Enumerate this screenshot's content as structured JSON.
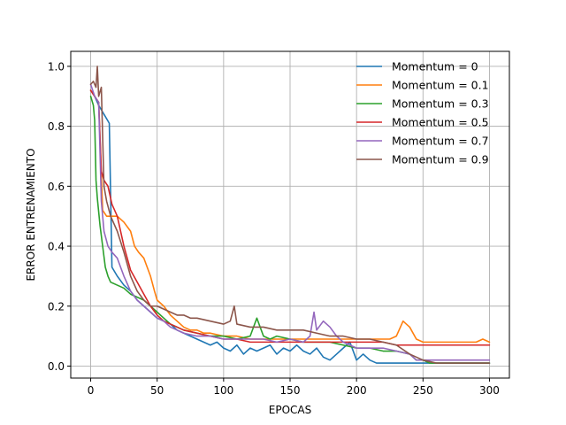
{
  "chart_data": {
    "type": "line",
    "title": "",
    "xlabel": "EPOCAS",
    "ylabel": "ERROR ENTRENAMIENTO",
    "xlim": [
      -15,
      315
    ],
    "ylim": [
      -0.04,
      1.05
    ],
    "xticks": [
      0,
      50,
      100,
      150,
      200,
      250,
      300
    ],
    "yticks": [
      0.0,
      0.2,
      0.4,
      0.6,
      0.8,
      1.0
    ],
    "xtick_labels": [
      "0",
      "50",
      "100",
      "150",
      "200",
      "250",
      "300"
    ],
    "ytick_labels": [
      "0.0",
      "0.2",
      "0.4",
      "0.6",
      "0.8",
      "1.0"
    ],
    "grid": true,
    "legend_position": "top-right",
    "series": [
      {
        "name": "Momentum = 0",
        "color": "#1f77b4",
        "x": [
          0,
          3,
          6,
          10,
          14,
          16,
          20,
          25,
          30,
          35,
          40,
          45,
          50,
          55,
          60,
          65,
          70,
          75,
          80,
          85,
          90,
          95,
          100,
          105,
          110,
          115,
          120,
          125,
          130,
          135,
          140,
          145,
          150,
          155,
          160,
          165,
          170,
          175,
          180,
          185,
          190,
          195,
          200,
          205,
          210,
          215,
          220,
          230,
          240,
          250,
          260,
          270,
          280,
          290,
          300
        ],
        "y": [
          0.92,
          0.9,
          0.87,
          0.84,
          0.81,
          0.33,
          0.3,
          0.27,
          0.25,
          0.22,
          0.2,
          0.18,
          0.16,
          0.15,
          0.14,
          0.12,
          0.11,
          0.1,
          0.09,
          0.08,
          0.07,
          0.08,
          0.06,
          0.05,
          0.07,
          0.04,
          0.06,
          0.05,
          0.06,
          0.07,
          0.04,
          0.06,
          0.05,
          0.07,
          0.05,
          0.04,
          0.06,
          0.03,
          0.02,
          0.04,
          0.06,
          0.08,
          0.02,
          0.04,
          0.02,
          0.01,
          0.01,
          0.01,
          0.01,
          0.01,
          0.01,
          0.01,
          0.01,
          0.01,
          0.01
        ]
      },
      {
        "name": "Momentum = 0.1",
        "color": "#ff7f0e",
        "x": [
          0,
          3,
          6,
          9,
          12,
          15,
          20,
          25,
          30,
          33,
          36,
          40,
          45,
          48,
          50,
          55,
          60,
          65,
          70,
          75,
          80,
          85,
          90,
          100,
          110,
          120,
          130,
          140,
          150,
          160,
          170,
          180,
          190,
          200,
          210,
          220,
          225,
          230,
          235,
          240,
          245,
          250,
          260,
          270,
          280,
          290,
          295,
          300
        ],
        "y": [
          0.92,
          0.9,
          0.88,
          0.52,
          0.5,
          0.5,
          0.5,
          0.48,
          0.45,
          0.4,
          0.38,
          0.36,
          0.3,
          0.25,
          0.22,
          0.2,
          0.17,
          0.15,
          0.13,
          0.12,
          0.12,
          0.11,
          0.11,
          0.1,
          0.1,
          0.09,
          0.09,
          0.09,
          0.09,
          0.09,
          0.09,
          0.09,
          0.09,
          0.09,
          0.09,
          0.09,
          0.09,
          0.1,
          0.15,
          0.13,
          0.09,
          0.08,
          0.08,
          0.08,
          0.08,
          0.08,
          0.09,
          0.08
        ]
      },
      {
        "name": "Momentum = 0.3",
        "color": "#2ca02c",
        "x": [
          0,
          2,
          3,
          4,
          5,
          7,
          9,
          11,
          13,
          15,
          20,
          25,
          30,
          35,
          40,
          45,
          50,
          55,
          60,
          65,
          70,
          80,
          90,
          100,
          110,
          120,
          125,
          130,
          135,
          140,
          150,
          160,
          170,
          180,
          190,
          200,
          210,
          220,
          230,
          240,
          245,
          250,
          255,
          260,
          270,
          280,
          290,
          300
        ],
        "y": [
          0.9,
          0.87,
          0.82,
          0.62,
          0.56,
          0.47,
          0.4,
          0.33,
          0.3,
          0.28,
          0.27,
          0.26,
          0.24,
          0.23,
          0.22,
          0.2,
          0.18,
          0.16,
          0.14,
          0.13,
          0.12,
          0.11,
          0.1,
          0.1,
          0.09,
          0.1,
          0.16,
          0.1,
          0.09,
          0.1,
          0.09,
          0.08,
          0.08,
          0.08,
          0.07,
          0.06,
          0.06,
          0.05,
          0.05,
          0.04,
          0.02,
          0.02,
          0.01,
          0.01,
          0.01,
          0.01,
          0.01,
          0.01
        ]
      },
      {
        "name": "Momentum = 0.5",
        "color": "#d62728",
        "x": [
          0,
          3,
          6,
          8,
          10,
          13,
          16,
          20,
          25,
          30,
          35,
          40,
          45,
          50,
          55,
          60,
          65,
          70,
          80,
          90,
          100,
          110,
          120,
          130,
          140,
          150,
          160,
          170,
          180,
          190,
          200,
          210,
          220,
          230,
          240,
          250,
          260,
          270,
          280,
          290,
          300
        ],
        "y": [
          0.92,
          0.9,
          0.88,
          0.65,
          0.62,
          0.6,
          0.54,
          0.5,
          0.4,
          0.32,
          0.28,
          0.24,
          0.2,
          0.17,
          0.15,
          0.14,
          0.13,
          0.12,
          0.11,
          0.1,
          0.09,
          0.09,
          0.08,
          0.08,
          0.08,
          0.08,
          0.08,
          0.08,
          0.08,
          0.08,
          0.08,
          0.08,
          0.08,
          0.07,
          0.07,
          0.07,
          0.07,
          0.07,
          0.07,
          0.07,
          0.07
        ]
      },
      {
        "name": "Momentum = 0.7",
        "color": "#9467bd",
        "x": [
          0,
          3,
          6,
          8,
          10,
          13,
          16,
          20,
          25,
          30,
          35,
          40,
          45,
          50,
          55,
          60,
          65,
          70,
          80,
          90,
          100,
          110,
          120,
          130,
          140,
          150,
          160,
          165,
          168,
          170,
          175,
          180,
          185,
          190,
          200,
          210,
          220,
          230,
          240,
          245,
          250,
          255,
          260,
          270,
          280,
          290,
          300
        ],
        "y": [
          0.94,
          0.9,
          0.88,
          0.55,
          0.45,
          0.4,
          0.38,
          0.36,
          0.3,
          0.25,
          0.22,
          0.2,
          0.18,
          0.16,
          0.15,
          0.13,
          0.12,
          0.11,
          0.1,
          0.1,
          0.09,
          0.09,
          0.09,
          0.09,
          0.08,
          0.09,
          0.08,
          0.1,
          0.18,
          0.12,
          0.15,
          0.13,
          0.1,
          0.08,
          0.06,
          0.06,
          0.06,
          0.05,
          0.04,
          0.02,
          0.02,
          0.02,
          0.02,
          0.02,
          0.02,
          0.02,
          0.02
        ]
      },
      {
        "name": "Momentum = 0.9",
        "color": "#8c564b",
        "x": [
          0,
          2,
          4,
          5,
          6,
          8,
          10,
          12,
          15,
          20,
          25,
          30,
          35,
          40,
          45,
          50,
          55,
          60,
          65,
          70,
          75,
          80,
          90,
          100,
          105,
          108,
          110,
          120,
          130,
          140,
          150,
          160,
          170,
          180,
          190,
          200,
          210,
          220,
          230,
          240,
          250,
          260,
          270,
          280,
          290,
          300
        ],
        "y": [
          0.94,
          0.95,
          0.93,
          1.0,
          0.9,
          0.93,
          0.6,
          0.55,
          0.5,
          0.45,
          0.38,
          0.3,
          0.25,
          0.22,
          0.2,
          0.2,
          0.19,
          0.18,
          0.17,
          0.17,
          0.16,
          0.16,
          0.15,
          0.14,
          0.15,
          0.2,
          0.14,
          0.13,
          0.13,
          0.12,
          0.12,
          0.12,
          0.11,
          0.1,
          0.1,
          0.09,
          0.09,
          0.08,
          0.07,
          0.04,
          0.02,
          0.01,
          0.01,
          0.01,
          0.01,
          0.01
        ]
      }
    ]
  }
}
